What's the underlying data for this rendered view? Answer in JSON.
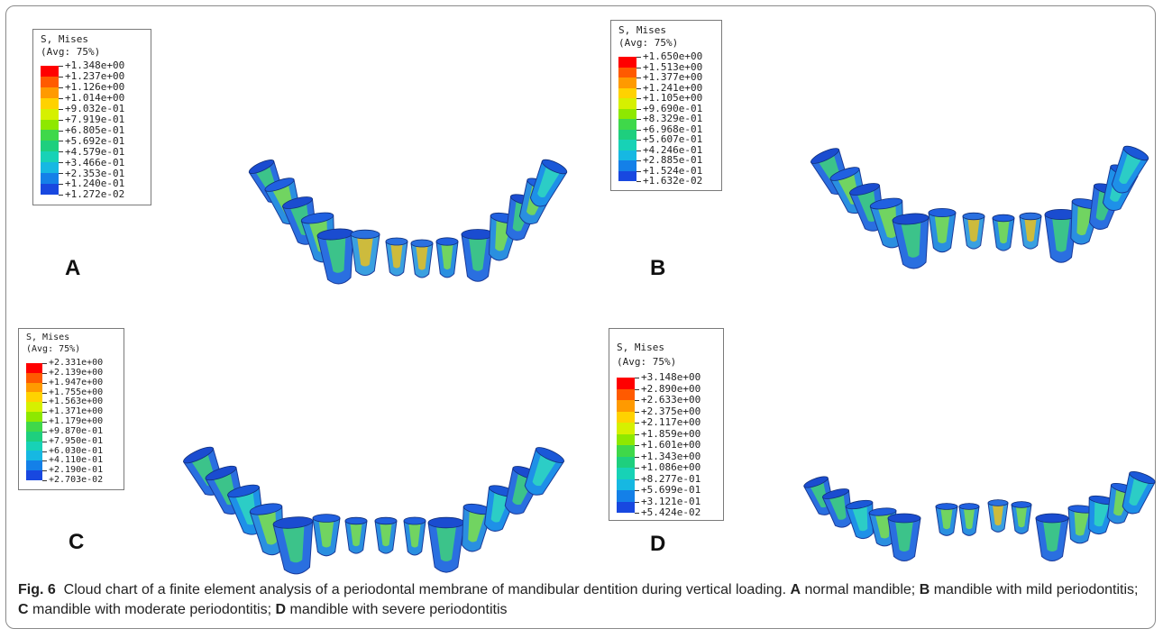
{
  "figure": {
    "caption_label": "Fig. 6",
    "caption_text": "Cloud chart of a finite element analysis of a periodontal membrane of mandibular dentition during vertical loading.",
    "caption_parts": [
      {
        "letter": "A",
        "text": "normal mandible;"
      },
      {
        "letter": "B",
        "text": "mandible with mild periodontitis;"
      },
      {
        "letter": "C",
        "text": "mandible with moderate periodontitis;"
      },
      {
        "letter": "D",
        "text": "mandible with severe periodontitis"
      }
    ]
  },
  "colors": {
    "scale": [
      "#ff0000",
      "#ff5a00",
      "#ff9a00",
      "#ffd200",
      "#d6f000",
      "#8ee800",
      "#3fd84a",
      "#1ecf7e",
      "#17d2b6",
      "#16b8e2",
      "#1480e8",
      "#1848e0",
      "#0a00ff"
    ]
  },
  "panels": [
    {
      "label": "A",
      "legend_title_1": "S, Mises",
      "legend_title_2": "(Avg: 75%)",
      "values": [
        "+1.348e+00",
        "+1.237e+00",
        "+1.126e+00",
        "+1.014e+00",
        "+9.032e-01",
        "+7.919e-01",
        "+6.805e-01",
        "+5.692e-01",
        "+4.579e-01",
        "+3.466e-01",
        "+2.353e-01",
        "+1.240e-01",
        "+1.272e-02"
      ]
    },
    {
      "label": "B",
      "legend_title_1": "S, Mises",
      "legend_title_2": "(Avg: 75%)",
      "values": [
        "+1.650e+00",
        "+1.513e+00",
        "+1.377e+00",
        "+1.241e+00",
        "+1.105e+00",
        "+9.690e-01",
        "+8.329e-01",
        "+6.968e-01",
        "+5.607e-01",
        "+4.246e-01",
        "+2.885e-01",
        "+1.524e-01",
        "+1.632e-02"
      ]
    },
    {
      "label": "C",
      "legend_title_1": "S, Mises",
      "legend_title_2": "(Avg: 75%)",
      "values": [
        "+2.331e+00",
        "+2.139e+00",
        "+1.947e+00",
        "+1.755e+00",
        "+1.563e+00",
        "+1.371e+00",
        "+1.179e+00",
        "+9.870e-01",
        "+7.950e-01",
        "+6.030e-01",
        "+4.110e-01",
        "+2.190e-01",
        "+2.703e-02"
      ]
    },
    {
      "label": "D",
      "legend_title_1": "S, Mises",
      "legend_title_2": "(Avg: 75%)",
      "values": [
        "+3.148e+00",
        "+2.890e+00",
        "+2.633e+00",
        "+2.375e+00",
        "+2.117e+00",
        "+1.859e+00",
        "+1.601e+00",
        "+1.343e+00",
        "+1.086e+00",
        "+8.277e-01",
        "+5.699e-01",
        "+3.121e-01",
        "+5.424e-02"
      ]
    }
  ]
}
